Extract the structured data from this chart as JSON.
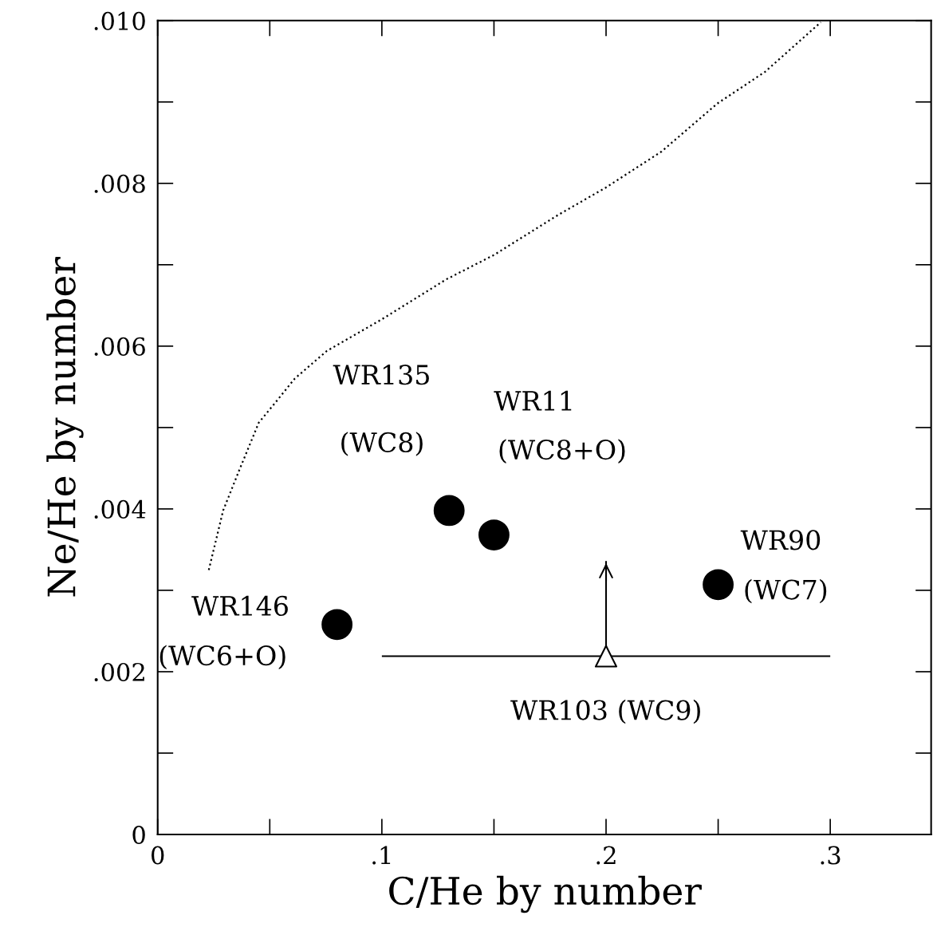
{
  "chart_data": {
    "type": "scatter",
    "xlabel": "C/He by number",
    "ylabel": "Ne/He by number",
    "xlim": [
      0,
      0.345
    ],
    "ylim": [
      0,
      0.01
    ],
    "xticks": [
      0,
      {
        "value": 0.1,
        "label": ".1"
      },
      {
        "value": 0.2,
        "label": ".2"
      },
      {
        "value": 0.3,
        "label": ".3"
      }
    ],
    "yticks": [
      0,
      {
        "value": 0.002,
        "label": ".002"
      },
      {
        "value": 0.004,
        "label": ".004"
      },
      {
        "value": 0.006,
        "label": ".006"
      },
      {
        "value": 0.008,
        "label": ".008"
      },
      {
        "value": 0.01,
        "label": ".010"
      }
    ],
    "grid": false,
    "legend": false,
    "tick_labels": "xy",
    "series": [
      {
        "type": "line",
        "color": "#000000",
        "line_style": "dotted",
        "marker": "none",
        "x": [
          0.0228,
          0.0292,
          0.0363,
          0.0451,
          0.0523,
          0.0611,
          0.0754,
          0.1,
          0.1287,
          0.15,
          0.1785,
          0.2,
          0.2247,
          0.2496,
          0.2709,
          0.2958
        ],
        "values": [
          0.00325,
          0.00398,
          0.00447,
          0.00506,
          0.0053,
          0.0056,
          0.00594,
          0.00633,
          0.00682,
          0.00712,
          0.00761,
          0.00795,
          0.00839,
          0.00898,
          0.00937,
          0.00998
        ]
      },
      {
        "color": "#000000",
        "marker": "circle",
        "x": [
          0.08,
          0.13,
          0.15,
          0.25
        ],
        "values": [
          0.00258,
          0.00398,
          0.00368,
          0.00307
        ]
      },
      {
        "color": "#000000",
        "marker": "triangle",
        "x": [
          0.2
        ],
        "values": [
          0.00219
        ],
        "xerrors": [
          [
            0.1,
            0.3
          ]
        ],
        "errors": [
          [
            0.00219,
            0.00336
          ]
        ]
      }
    ],
    "annotations": [
      "WR146",
      "(WC6+O)",
      "WR135",
      "(WC8)",
      "WR11",
      "(WC8+O)",
      "WR90",
      "(WC7)",
      "WR103 (WC9)"
    ]
  }
}
